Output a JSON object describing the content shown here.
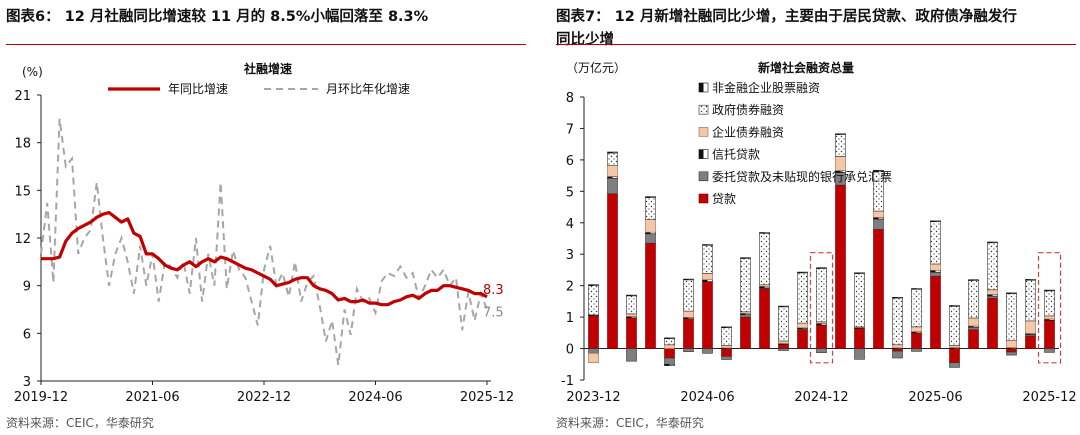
{
  "left_panel": {
    "caption": "图表6：  12 月社融同比增速较 11 月的 8.5%小幅回落至 8.3%",
    "source": "资料来源：CEIC，华泰研究"
  },
  "right_panel": {
    "caption_line1": "图表7：  12 月新增社融同比少增，主要由于居民贷款、政府债净融发行",
    "caption_line2": "同比少增",
    "source": "资料来源：CEIC，华泰研究"
  },
  "colors": {
    "accent_red": "#c00000",
    "gray": "#a6a6a6",
    "dark_gray": "#7f7f7f",
    "peach": "#f4c7a8",
    "rule": "#b00000"
  },
  "chart_data": [
    {
      "type": "line",
      "title": "社融增速",
      "ylabel": "(%)",
      "ylim": [
        3,
        21
      ],
      "yticks": [
        3,
        6,
        9,
        12,
        15,
        18,
        21
      ],
      "x_tick_labels": [
        "2019-12",
        "2021-06",
        "2022-12",
        "2024-06",
        "2025-12"
      ],
      "x_tick_positions": [
        0,
        18,
        36,
        54,
        72
      ],
      "series": [
        {
          "name": "年同比增速",
          "style": "solid-red",
          "end_label": "8.3",
          "values": [
            10.7,
            10.7,
            10.7,
            10.8,
            11.8,
            12.3,
            12.6,
            12.8,
            13.0,
            13.3,
            13.5,
            13.6,
            13.3,
            13.0,
            13.2,
            12.3,
            12.1,
            11.0,
            11.0,
            10.7,
            10.3,
            10.1,
            10.0,
            10.3,
            10.5,
            10.2,
            10.5,
            10.7,
            10.5,
            10.8,
            10.7,
            10.5,
            10.3,
            10.1,
            10.0,
            9.8,
            9.6,
            9.4,
            9.0,
            9.1,
            9.2,
            9.4,
            9.5,
            9.5,
            9.0,
            8.8,
            8.7,
            8.5,
            8.1,
            8.2,
            8.0,
            8.0,
            8.1,
            7.9,
            7.9,
            7.8,
            7.8,
            8.0,
            8.1,
            8.3,
            8.4,
            8.2,
            8.5,
            8.7,
            8.7,
            9.0,
            9.0,
            8.9,
            8.8,
            8.7,
            8.5,
            8.5,
            8.3
          ]
        },
        {
          "name": "月环比年化增速",
          "style": "dashed-gray",
          "end_label": "7.5",
          "values": [
            11.0,
            14.2,
            9.2,
            19.5,
            16.5,
            17.0,
            11.0,
            12.0,
            12.5,
            15.5,
            12.0,
            9.0,
            11.0,
            12.0,
            10.5,
            8.5,
            11.5,
            9.0,
            11.0,
            8.0,
            10.5,
            10.2,
            9.5,
            10.5,
            8.5,
            12.0,
            8.0,
            11.0,
            9.0,
            15.5,
            8.8,
            11.2,
            10.0,
            9.5,
            8.0,
            6.5,
            10.0,
            11.5,
            9.0,
            9.8,
            8.3,
            10.5,
            8.0,
            9.2,
            9.6,
            7.7,
            5.5,
            6.8,
            4.0,
            7.5,
            5.9,
            8.8,
            8.0,
            8.2,
            7.3,
            9.3,
            9.8,
            9.6,
            10.2,
            9.5,
            9.8,
            8.2,
            9.0,
            10.0,
            9.5,
            10.0,
            9.0,
            9.5,
            6.2,
            8.6,
            6.8,
            8.5,
            7.5
          ]
        }
      ]
    },
    {
      "type": "bar",
      "stacked": true,
      "title": "新增社会融资总量",
      "ylabel": "（万亿元）",
      "ylim": [
        -1,
        8
      ],
      "yticks": [
        -1,
        0,
        1,
        2,
        3,
        4,
        5,
        6,
        7,
        8
      ],
      "x_tick_labels": [
        "2023-12",
        "2024-06",
        "2024-12",
        "2025-06",
        "2025-12"
      ],
      "x_tick_positions": [
        0,
        6,
        12,
        18,
        24
      ],
      "highlight_indices": [
        12,
        24
      ],
      "categories": [
        "2023-12",
        "2024-01",
        "2024-02",
        "2024-03",
        "2024-04",
        "2024-05",
        "2024-06",
        "2024-07",
        "2024-08",
        "2024-09",
        "2024-10",
        "2024-11",
        "2024-12",
        "2025-01",
        "2025-02",
        "2025-03",
        "2025-04",
        "2025-05",
        "2025-06",
        "2025-07",
        "2025-08",
        "2025-09",
        "2025-10",
        "2025-11",
        "2025-12"
      ],
      "series": [
        {
          "name": "贷款",
          "style": "red",
          "values": [
            1.05,
            4.92,
            0.98,
            3.35,
            -0.3,
            0.95,
            2.13,
            -0.25,
            1.0,
            1.9,
            0.13,
            0.6,
            0.75,
            5.2,
            0.64,
            3.79,
            -0.08,
            0.5,
            2.3,
            -0.45,
            0.6,
            1.6,
            -0.11,
            0.4,
            0.9
          ]
        },
        {
          "name": "委托贷款及未贴现的银行承兑汇票",
          "style": "dark-gray",
          "values": [
            -0.15,
            0.5,
            -0.4,
            0.3,
            -0.2,
            -0.1,
            -0.15,
            -0.1,
            0.08,
            0.03,
            -0.06,
            0.03,
            -0.13,
            0.4,
            -0.34,
            0.33,
            -0.22,
            -0.09,
            0.13,
            -0.15,
            0.08,
            0.07,
            -0.1,
            0.05,
            -0.12
          ]
        },
        {
          "name": "信托贷款",
          "style": "black-white-split",
          "values": [
            0.02,
            0.05,
            0.04,
            0.05,
            -0.04,
            0.04,
            0.06,
            0.02,
            0.04,
            0.05,
            0.03,
            0.03,
            0.05,
            0.06,
            0.03,
            0.05,
            0.02,
            0.04,
            0.06,
            0.03,
            0.04,
            0.05,
            0.03,
            0.03,
            0.04
          ]
        },
        {
          "name": "企业债券融资",
          "style": "peach",
          "values": [
            -0.3,
            0.35,
            0.08,
            0.4,
            0.12,
            0.2,
            0.2,
            0.08,
            0.05,
            0.05,
            0.08,
            0.15,
            0.05,
            0.45,
            0.02,
            0.2,
            0.1,
            0.15,
            0.2,
            0.07,
            0.25,
            0.15,
            0.22,
            0.4,
            0.1
          ]
        },
        {
          "name": "政府债券融资",
          "style": "dotted",
          "values": [
            0.93,
            0.4,
            0.58,
            0.7,
            0.2,
            1.0,
            0.9,
            0.58,
            1.7,
            1.64,
            1.1,
            1.6,
            1.7,
            0.7,
            1.7,
            1.28,
            1.5,
            1.2,
            1.35,
            1.25,
            1.2,
            1.5,
            1.5,
            1.3,
            0.8
          ]
        },
        {
          "name": "非金融企业股票融资",
          "style": "black-white-split-small",
          "values": [
            0.03,
            0.03,
            0.02,
            0.03,
            0.02,
            0.02,
            0.02,
            0.01,
            0.02,
            0.02,
            0.01,
            0.02,
            0.02,
            0.02,
            0.02,
            0.02,
            0.01,
            0.02,
            0.02,
            0.02,
            0.02,
            0.02,
            0.02,
            0.02,
            0.02
          ]
        }
      ]
    }
  ]
}
